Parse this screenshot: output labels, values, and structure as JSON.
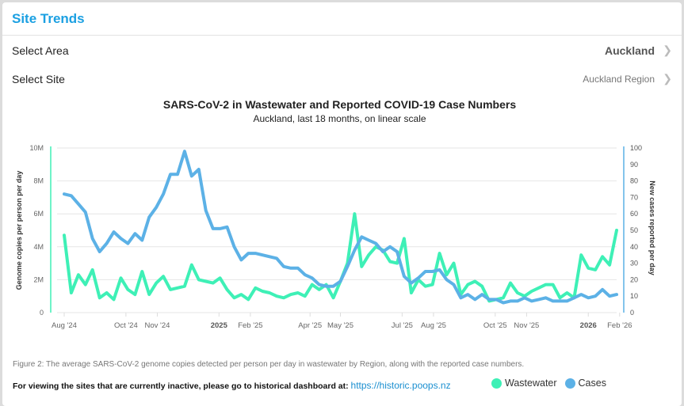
{
  "header": {
    "title": "Site Trends"
  },
  "selectors": [
    {
      "label": "Select Area",
      "value": "Auckland"
    },
    {
      "label": "Select Site",
      "value": "Auckland Region"
    }
  ],
  "footer": {
    "caption": "Figure 2: The average SARS-CoV-2 genome copies detected per person per day in wastewater by Region, along with the reported case numbers.",
    "note": "For viewing the sites that are currently inactive, please go to historical dashboard at:",
    "link": "https://historic.poops.nz"
  },
  "colors": {
    "accent": "#1ba0e2",
    "wastewater": "#3ef0b6",
    "cases": "#5cb1e6"
  },
  "chart_data": {
    "type": "line",
    "title": "SARS-CoV-2 in Wastewater and Reported COVID-19 Case Numbers",
    "subtitle": "Auckland, last 18 months, on linear scale",
    "ylabel": "Genome copies per person per day",
    "y2label": "New cases reported per day",
    "ylim": [
      0,
      10000000
    ],
    "y2lim": [
      0,
      100
    ],
    "yticks": [
      "0",
      "2M",
      "4M",
      "6M",
      "8M",
      "10M"
    ],
    "y2ticks": [
      "0",
      "10",
      "20",
      "30",
      "40",
      "50",
      "60",
      "70",
      "80",
      "90",
      "100"
    ],
    "xticks": [
      {
        "date": "2024-08-01",
        "label": "Aug '24"
      },
      {
        "date": "2024-10-01",
        "label": "Oct '24"
      },
      {
        "date": "2024-11-01",
        "label": "Nov '24"
      },
      {
        "date": "2025-01-01",
        "label": "2025",
        "bold": true
      },
      {
        "date": "2025-02-01",
        "label": "Feb '25"
      },
      {
        "date": "2025-04-01",
        "label": "Apr '25"
      },
      {
        "date": "2025-05-01",
        "label": "May '25"
      },
      {
        "date": "2025-07-01",
        "label": "Jul '25"
      },
      {
        "date": "2025-08-01",
        "label": "Aug '25"
      },
      {
        "date": "2025-10-01",
        "label": "Oct '25"
      },
      {
        "date": "2025-11-01",
        "label": "Nov '25"
      },
      {
        "date": "2026-01-01",
        "label": "2026",
        "bold": true
      },
      {
        "date": "2026-02-01",
        "label": "Feb '26"
      }
    ],
    "grid": true,
    "legend": "bottom",
    "x": [
      "2024-08-01",
      "2024-08-08",
      "2024-08-15",
      "2024-08-22",
      "2024-08-29",
      "2024-09-05",
      "2024-09-12",
      "2024-09-19",
      "2024-09-26",
      "2024-10-03",
      "2024-10-10",
      "2024-10-17",
      "2024-10-24",
      "2024-10-31",
      "2024-11-07",
      "2024-11-14",
      "2024-11-21",
      "2024-11-28",
      "2024-12-05",
      "2024-12-12",
      "2024-12-19",
      "2024-12-26",
      "2025-01-02",
      "2025-01-09",
      "2025-01-16",
      "2025-01-23",
      "2025-01-30",
      "2025-02-06",
      "2025-02-13",
      "2025-02-20",
      "2025-02-27",
      "2025-03-06",
      "2025-03-13",
      "2025-03-20",
      "2025-03-27",
      "2025-04-03",
      "2025-04-10",
      "2025-04-17",
      "2025-04-24",
      "2025-05-01",
      "2025-05-08",
      "2025-05-15",
      "2025-05-22",
      "2025-05-29",
      "2025-06-05",
      "2025-06-12",
      "2025-06-19",
      "2025-06-26",
      "2025-07-03",
      "2025-07-10",
      "2025-07-17",
      "2025-07-24",
      "2025-07-31",
      "2025-08-07",
      "2025-08-14",
      "2025-08-21",
      "2025-08-28",
      "2025-09-04",
      "2025-09-11",
      "2025-09-18",
      "2025-09-25",
      "2025-10-02",
      "2025-10-09",
      "2025-10-16",
      "2025-10-23",
      "2025-10-30",
      "2025-11-06",
      "2025-11-13",
      "2025-11-20",
      "2025-11-27",
      "2025-12-04",
      "2025-12-11",
      "2025-12-18",
      "2025-12-25",
      "2026-01-01",
      "2026-01-08",
      "2026-01-15",
      "2026-01-22",
      "2026-01-29"
    ],
    "series": [
      {
        "name": "Wastewater",
        "axis": "left",
        "values": [
          4700000,
          1200000,
          2300000,
          1700000,
          2600000,
          900000,
          1200000,
          800000,
          2100000,
          1400000,
          1100000,
          2500000,
          1100000,
          1800000,
          2200000,
          1400000,
          1500000,
          1600000,
          2900000,
          2000000,
          1900000,
          1800000,
          2100000,
          1400000,
          900000,
          1100000,
          800000,
          1500000,
          1300000,
          1200000,
          1000000,
          900000,
          1100000,
          1200000,
          1000000,
          1700000,
          1400000,
          1700000,
          900000,
          1900000,
          3000000,
          6000000,
          2800000,
          3500000,
          4000000,
          3800000,
          3100000,
          3000000,
          4500000,
          1200000,
          2000000,
          1600000,
          1700000,
          3600000,
          2300000,
          3000000,
          1100000,
          1700000,
          1900000,
          1600000,
          700000,
          800000,
          900000,
          1800000,
          1200000,
          1000000,
          1300000,
          1500000,
          1700000,
          1700000,
          900000,
          1200000,
          900000,
          3500000,
          2700000,
          2600000,
          3400000,
          2900000,
          5000000
        ]
      },
      {
        "name": "Cases",
        "axis": "right",
        "values": [
          72,
          71,
          66,
          61,
          45,
          37,
          42,
          49,
          45,
          42,
          48,
          44,
          58,
          64,
          72,
          84,
          84,
          98,
          83,
          87,
          62,
          51,
          51,
          52,
          40,
          32,
          36,
          36,
          35,
          34,
          33,
          28,
          27,
          27,
          23,
          21,
          17,
          16,
          16,
          19,
          28,
          38,
          46,
          44,
          42,
          37,
          40,
          37,
          22,
          18,
          21,
          25,
          25,
          26,
          20,
          17,
          9,
          11,
          8,
          11,
          8,
          8,
          6,
          7,
          7,
          9,
          7,
          8,
          9,
          7,
          7,
          7,
          9,
          11,
          9,
          10,
          14,
          10,
          11
        ]
      }
    ]
  }
}
